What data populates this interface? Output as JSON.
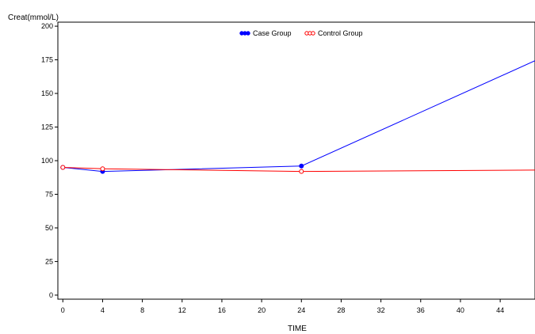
{
  "chart_data": {
    "type": "line",
    "title": "",
    "xlabel": "TIME",
    "ylabel": "Creat(mmol/L)",
    "xlim": [
      -0.5,
      47.5
    ],
    "ylim": [
      -3,
      203
    ],
    "xticks": [
      0,
      4,
      8,
      12,
      16,
      20,
      24,
      28,
      32,
      36,
      40,
      44
    ],
    "yticks": [
      0,
      25,
      50,
      75,
      100,
      125,
      150,
      175,
      200
    ],
    "grid": false,
    "legend_position": "top-center",
    "series": [
      {
        "name": "Case Group",
        "color": "#0000ff",
        "marker": "filled-circle",
        "x": [
          0,
          4,
          24,
          48
        ],
        "y": [
          95,
          92,
          96,
          176
        ]
      },
      {
        "name": "Control Group",
        "color": "#ff0000",
        "marker": "open-circle",
        "x": [
          0,
          4,
          24,
          48
        ],
        "y": [
          95,
          94,
          92,
          93
        ]
      }
    ]
  }
}
